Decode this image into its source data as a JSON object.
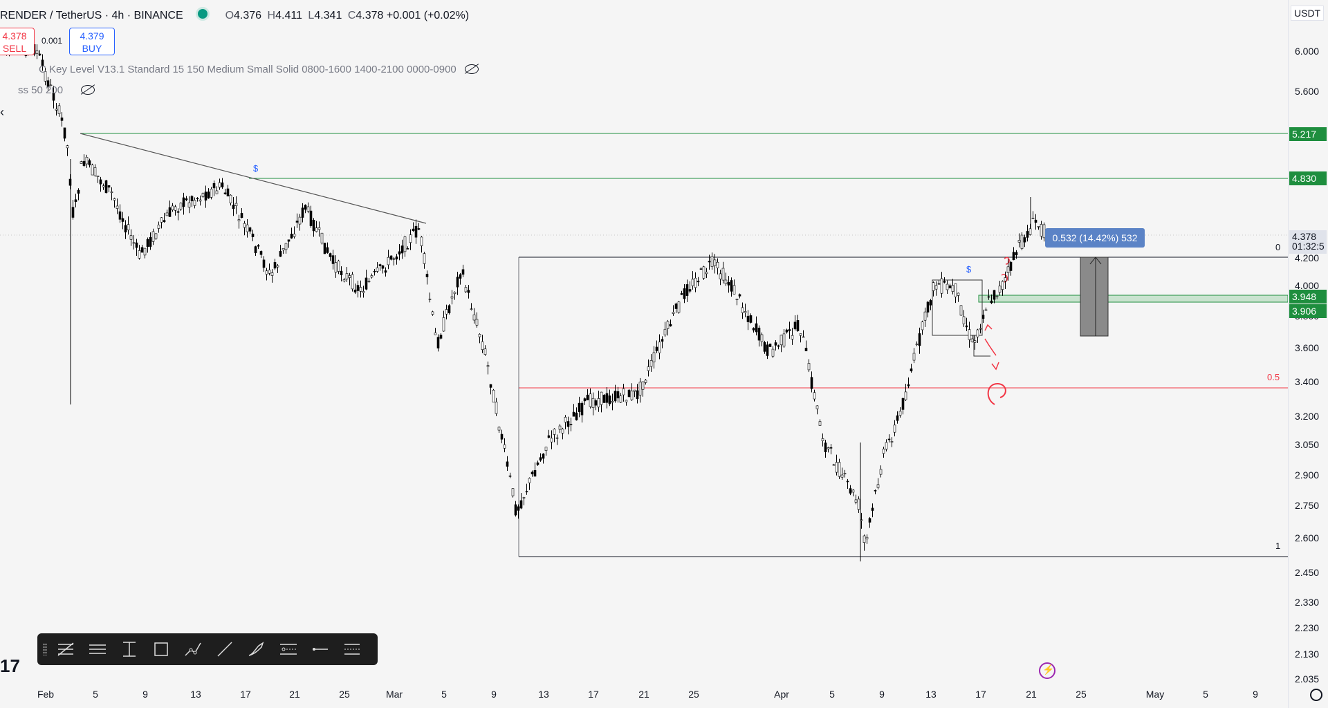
{
  "header": {
    "symbol": "RENDER / TetherUS · 4h · BINANCE",
    "open_label": "O",
    "open": "4.376",
    "high_label": "H",
    "high": "4.411",
    "low_label": "L",
    "low": "4.341",
    "close_label": "C",
    "close": "4.378",
    "change": "+0.001 (+0.02%)"
  },
  "trade": {
    "sell_price": "4.378",
    "sell_label": "SELL",
    "spread": "0.001",
    "buy_price": "4.379",
    "buy_label": "BUY"
  },
  "indicators": [
    "C Key Level V13.1 Standard 15 150 Medium Small Solid 0800-1600 1400-2100 0000-0900",
    "ss 50 200"
  ],
  "axis": {
    "currency": "USDT",
    "ticks": [
      "6.000",
      "5.600",
      "4.200",
      "4.000",
      "3.800",
      "3.600",
      "3.400",
      "3.200",
      "3.050",
      "2.900",
      "2.750",
      "2.600",
      "2.450",
      "2.330",
      "2.230",
      "2.130",
      "2.035"
    ],
    "current_price": "4.378",
    "countdown": "01:32:5",
    "levels": [
      {
        "value": "5.217",
        "color": "#1e8e3e"
      },
      {
        "value": "4.830",
        "color": "#1e8e3e"
      },
      {
        "value": "3.948",
        "color": "#1e8e3e"
      },
      {
        "value": "3.906",
        "color": "#1e8e3e"
      }
    ]
  },
  "x_axis": [
    "Feb",
    "5",
    "9",
    "13",
    "17",
    "21",
    "25",
    "Mar",
    "5",
    "9",
    "13",
    "17",
    "21",
    "25",
    "Apr",
    "5",
    "9",
    "13",
    "17",
    "21",
    "25",
    "May",
    "5",
    "9"
  ],
  "fib": {
    "level_0": "0",
    "level_05": "0.5",
    "level_1": "1"
  },
  "measure_label": "0.532 (14.42%) 532",
  "markers": {
    "dollar_1": "$",
    "dollar_2": "$"
  },
  "toolbar": [
    "fib-tool-icon",
    "horizontal-lines-icon",
    "vertical-range-icon",
    "rectangle-icon",
    "path-icon",
    "trend-line-icon",
    "brush-icon",
    "parallel-channel-icon",
    "horizontal-ray-icon",
    "price-range-icon"
  ],
  "colors": {
    "up": "#ffffff",
    "down": "#000000",
    "sell": "#f23645",
    "buy": "#2962ff",
    "green_level": "#1e8e3e",
    "fib_red": "#f23645"
  }
}
